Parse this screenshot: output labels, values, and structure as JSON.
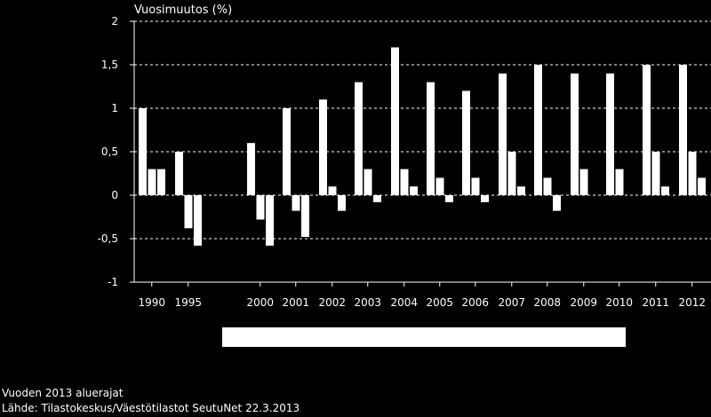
{
  "chart_data": {
    "type": "bar",
    "title": "",
    "ylabel": "Vuosimuutos (%)",
    "xlabel": "",
    "ylim": [
      -1,
      2
    ],
    "y_ticks": [
      -1,
      -0.5,
      0,
      0.5,
      1,
      1.5,
      2
    ],
    "y_tick_labels": [
      "-1",
      "-0,5",
      "0",
      "0,5",
      "1",
      "1,5",
      "2"
    ],
    "grid": true,
    "categories": [
      "1990",
      "1995",
      "2000",
      "2001",
      "2002",
      "2003",
      "2004",
      "2005",
      "2006",
      "2007",
      "2008",
      "2009",
      "2010",
      "2011",
      "2012"
    ],
    "series": [
      {
        "name": "",
        "values": [
          1.0,
          0.5,
          0.6,
          1.0,
          1.1,
          1.3,
          1.7,
          1.3,
          1.2,
          1.4,
          1.5,
          1.4,
          1.4,
          1.5,
          1.5
        ]
      },
      {
        "name": "",
        "values": [
          0.3,
          -0.38,
          -0.28,
          -0.18,
          0.1,
          0.3,
          0.3,
          0.2,
          0.2,
          0.5,
          0.2,
          0.3,
          0.3,
          0.5,
          0.5
        ]
      },
      {
        "name": "",
        "values": [
          0.3,
          -0.58,
          -0.58,
          -0.48,
          -0.18,
          -0.08,
          0.1,
          -0.08,
          -0.08,
          0.1,
          -0.18,
          0.0,
          0.0,
          0.1,
          0.2
        ]
      }
    ],
    "colors": {
      "bar": "#ffffff",
      "grid": "#ffffff",
      "axis": "#ffffff",
      "background": "#000000"
    }
  },
  "footer": {
    "line1": "Vuoden 2013 aluerajat",
    "line2": "Lähde: Tilastokeskus/Väestötilastot  SeutuNet 22.3.2013"
  }
}
